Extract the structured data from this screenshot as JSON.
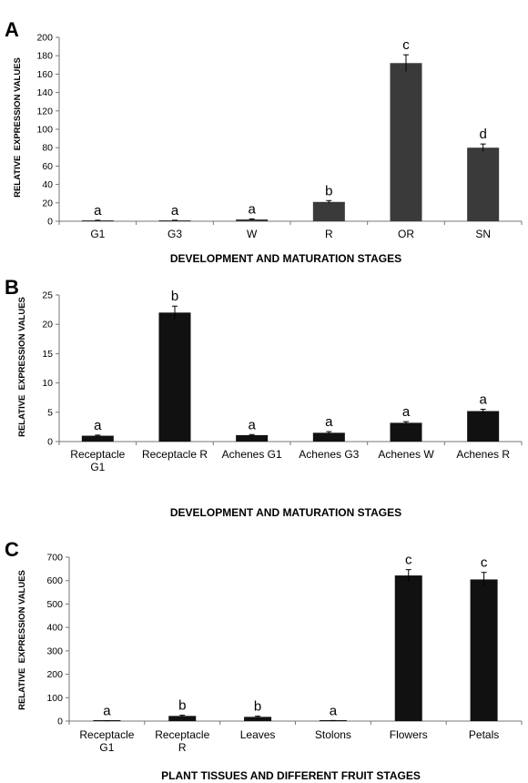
{
  "chart_data": [
    {
      "panel": "A",
      "type": "bar",
      "categories": [
        "G1",
        "G3",
        "W",
        "R",
        "OR",
        "SN"
      ],
      "values": [
        0.8,
        0.8,
        2,
        21,
        172,
        80
      ],
      "errors": [
        0.3,
        0.3,
        0.5,
        1.5,
        9,
        4
      ],
      "significance": [
        "a",
        "a",
        "a",
        "b",
        "c",
        "d"
      ],
      "xlabel": "DEVELOPMENT AND MATURATION STAGES",
      "ylabel": "RELATIVE  EXPRESSION VALUES",
      "ylim": [
        0,
        200
      ],
      "yticks": [
        0,
        20,
        40,
        60,
        80,
        100,
        120,
        140,
        160,
        180,
        200
      ],
      "bar_color": "#3a3a3a"
    },
    {
      "panel": "B",
      "type": "bar",
      "categories": [
        [
          "Receptacle",
          "G1"
        ],
        [
          "Receptacle R"
        ],
        [
          "Achenes G1"
        ],
        [
          "Achenes G3"
        ],
        [
          "Achenes W"
        ],
        [
          "Achenes R"
        ]
      ],
      "values": [
        1,
        22,
        1.1,
        1.5,
        3.2,
        5.2
      ],
      "errors": [
        0.1,
        1.1,
        0.1,
        0.2,
        0.2,
        0.3
      ],
      "significance": [
        "a",
        "b",
        "a",
        "a",
        "a",
        "a"
      ],
      "xlabel": "DEVELOPMENT AND MATURATION STAGES",
      "ylabel": "RELATIVE  EXPRESSION VALUES",
      "ylim": [
        0,
        25
      ],
      "yticks": [
        0,
        5,
        10,
        15,
        20,
        25
      ],
      "bar_color": "#111111"
    },
    {
      "panel": "C",
      "type": "bar",
      "categories": [
        [
          "Receptacle",
          "G1"
        ],
        [
          "Receptacle",
          "R"
        ],
        [
          "Leaves"
        ],
        [
          "Stolons"
        ],
        [
          "Flowers"
        ],
        [
          "Petals"
        ]
      ],
      "values": [
        1,
        22,
        18,
        2,
        622,
        605
      ],
      "errors": [
        0.5,
        3,
        3,
        0.5,
        25,
        30
      ],
      "significance": [
        "a",
        "b",
        "b",
        "a",
        "c",
        "c"
      ],
      "xlabel": "PLANT TISSUES AND DIFFERENT FRUIT STAGES",
      "ylabel": "RELATIVE  EXPRESSION VALUES",
      "ylim": [
        0,
        700
      ],
      "yticks": [
        0,
        100,
        200,
        300,
        400,
        500,
        600,
        700
      ],
      "bar_color": "#111111"
    }
  ]
}
